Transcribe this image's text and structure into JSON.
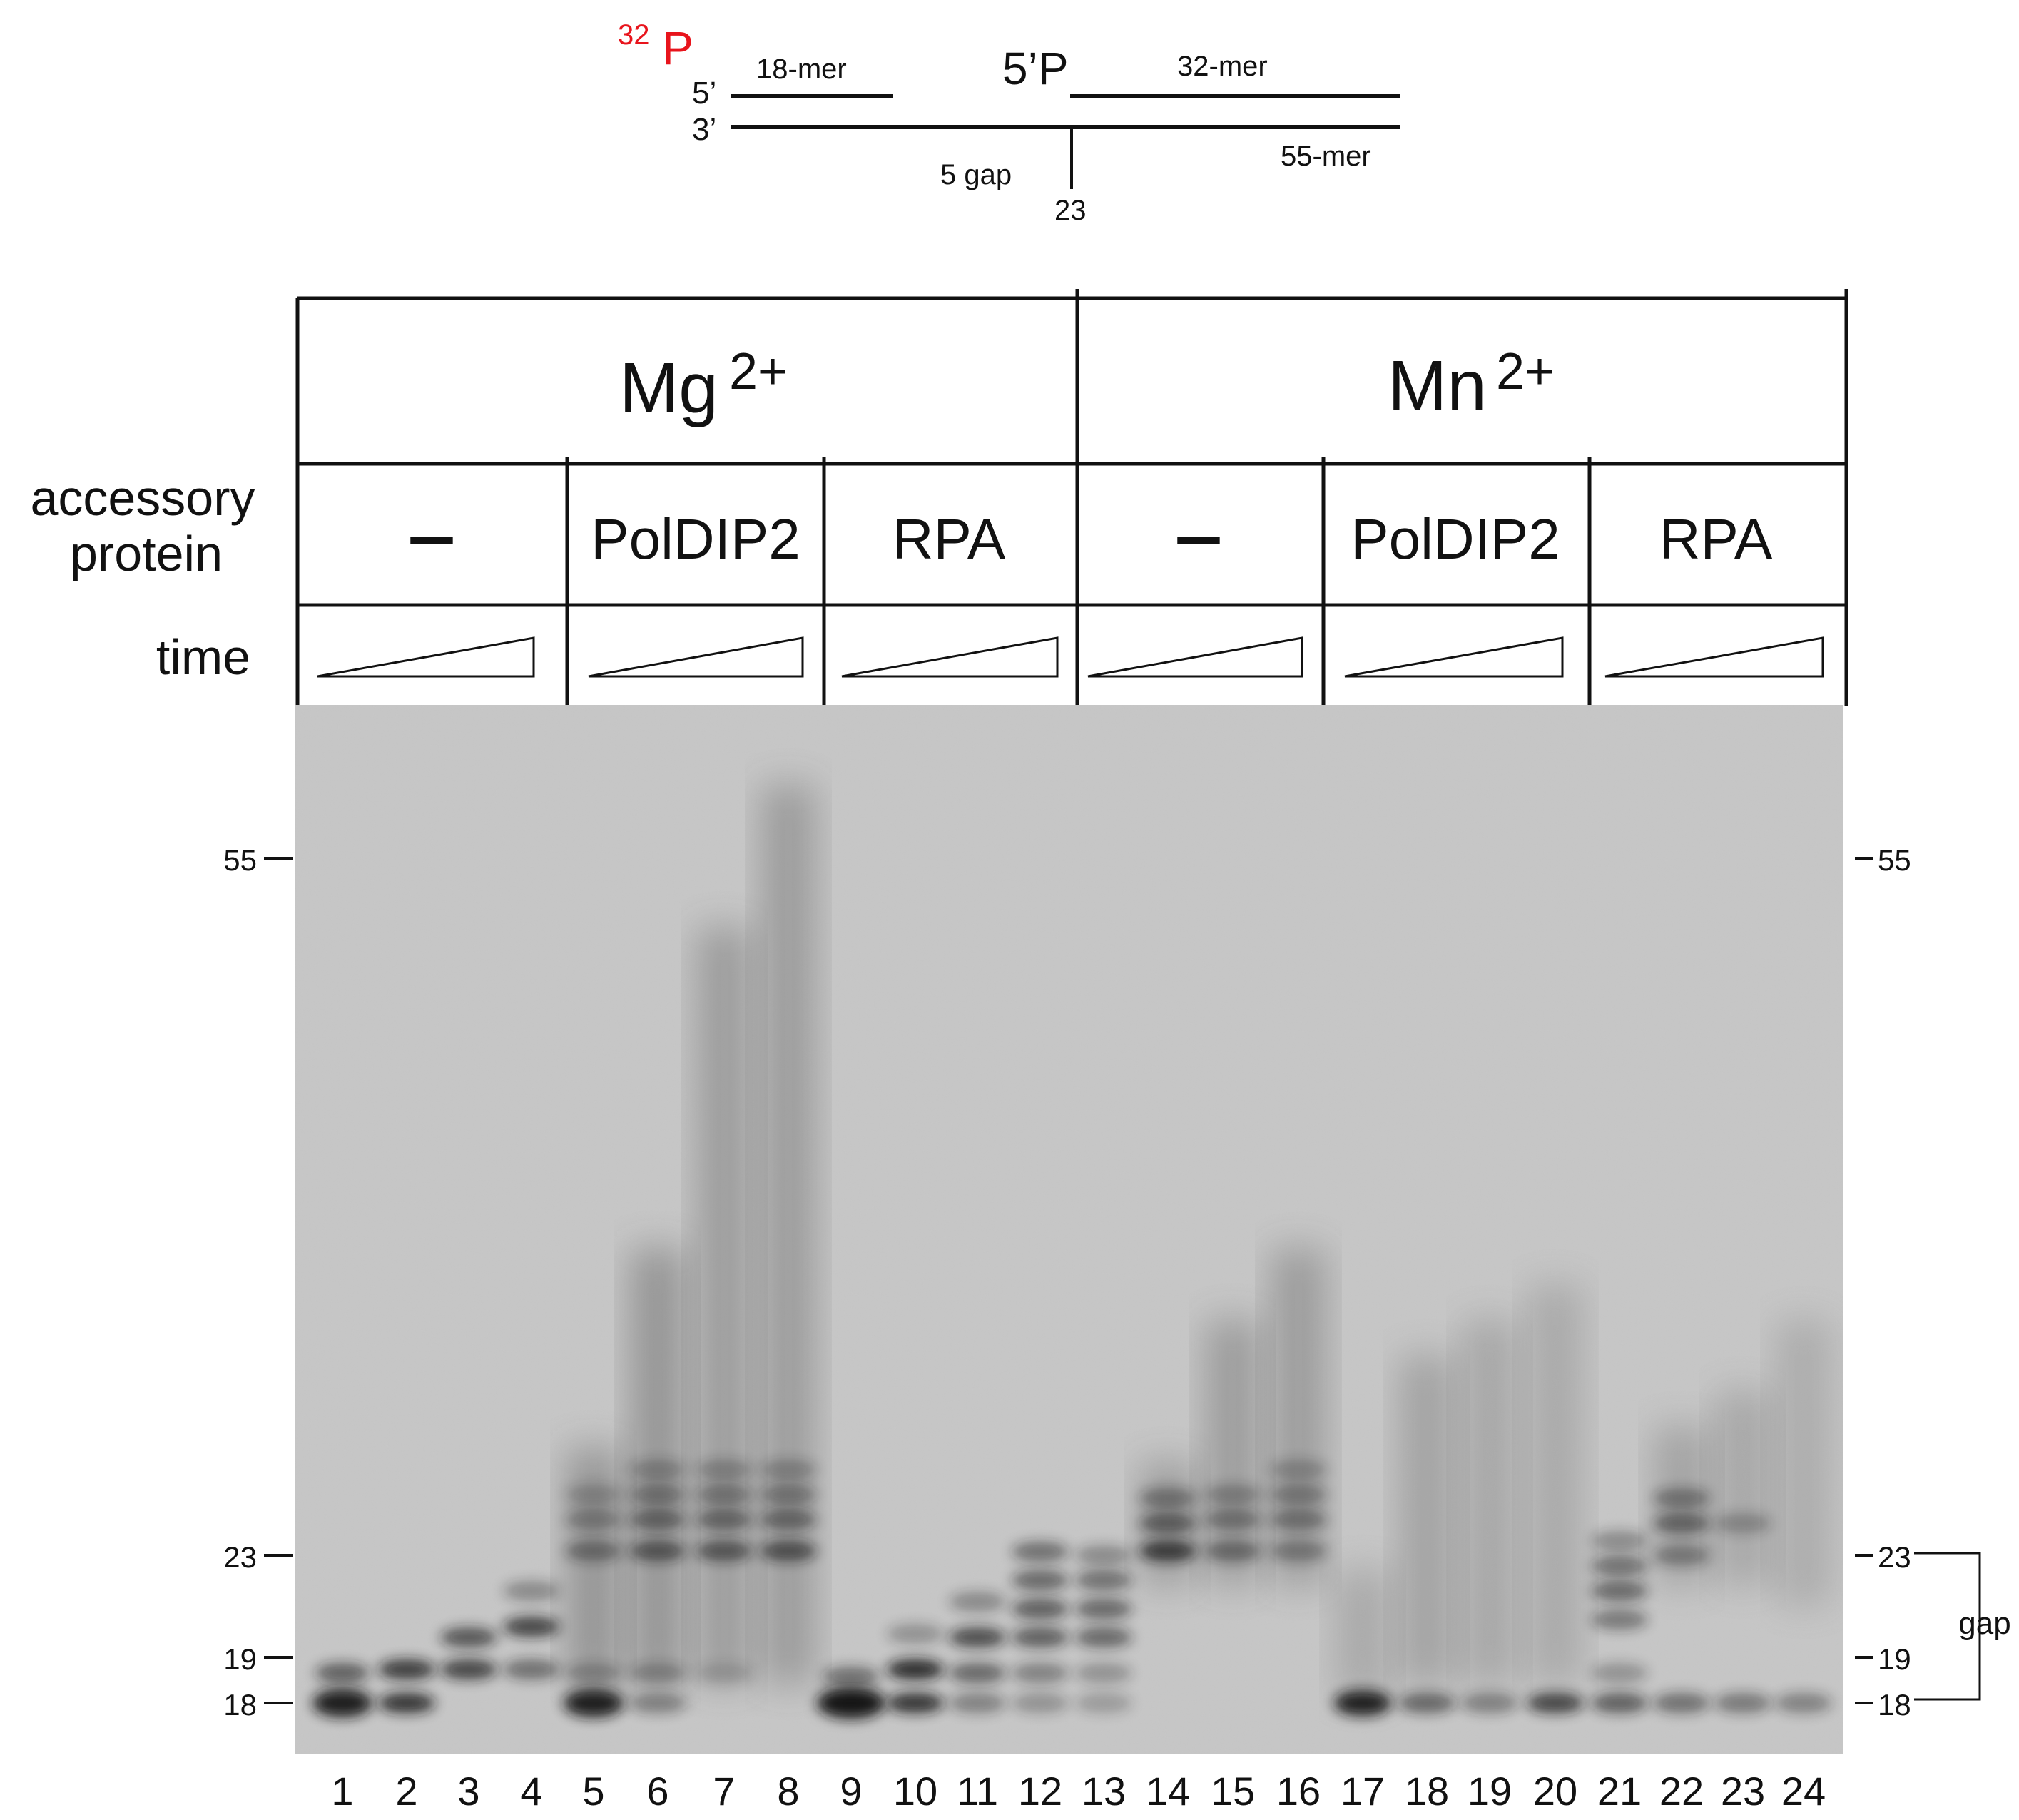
{
  "substrate": {
    "radiolabel": {
      "mass": "32",
      "element": "P"
    },
    "primer_5prime": "5’",
    "template_3prime": "3’",
    "primer_label": "18-mer",
    "downstream_5prime": "5’P",
    "downstream_label": "32-mer",
    "gap_label": "5 gap",
    "template_label": "55-mer",
    "position_label": "23"
  },
  "header": {
    "metal_conditions": [
      {
        "base": "Mg",
        "charge": "2+"
      },
      {
        "base": "Mn",
        "charge": "2+"
      }
    ],
    "accessory_label_line1": "accessory",
    "accessory_label_line2": "protein",
    "time_label": "time",
    "groups": [
      "–",
      "PolDIP2",
      "RPA",
      "–",
      "PolDIP2",
      "RPA"
    ]
  },
  "markers_left": [
    "55",
    "23",
    "19",
    "18"
  ],
  "markers_right": [
    "55",
    "23",
    "19",
    "18"
  ],
  "gap_bracket_label": "gap",
  "lanes": [
    "1",
    "2",
    "3",
    "4",
    "5",
    "6",
    "7",
    "8",
    "9",
    "10",
    "11",
    "12",
    "13",
    "14",
    "15",
    "16",
    "17",
    "18",
    "19",
    "20",
    "21",
    "22",
    "23",
    "24"
  ],
  "colors": {
    "radiolabel": "#e8141c",
    "gel_background": "#c8c8c8",
    "band": "#141414",
    "line": "#111111"
  }
}
